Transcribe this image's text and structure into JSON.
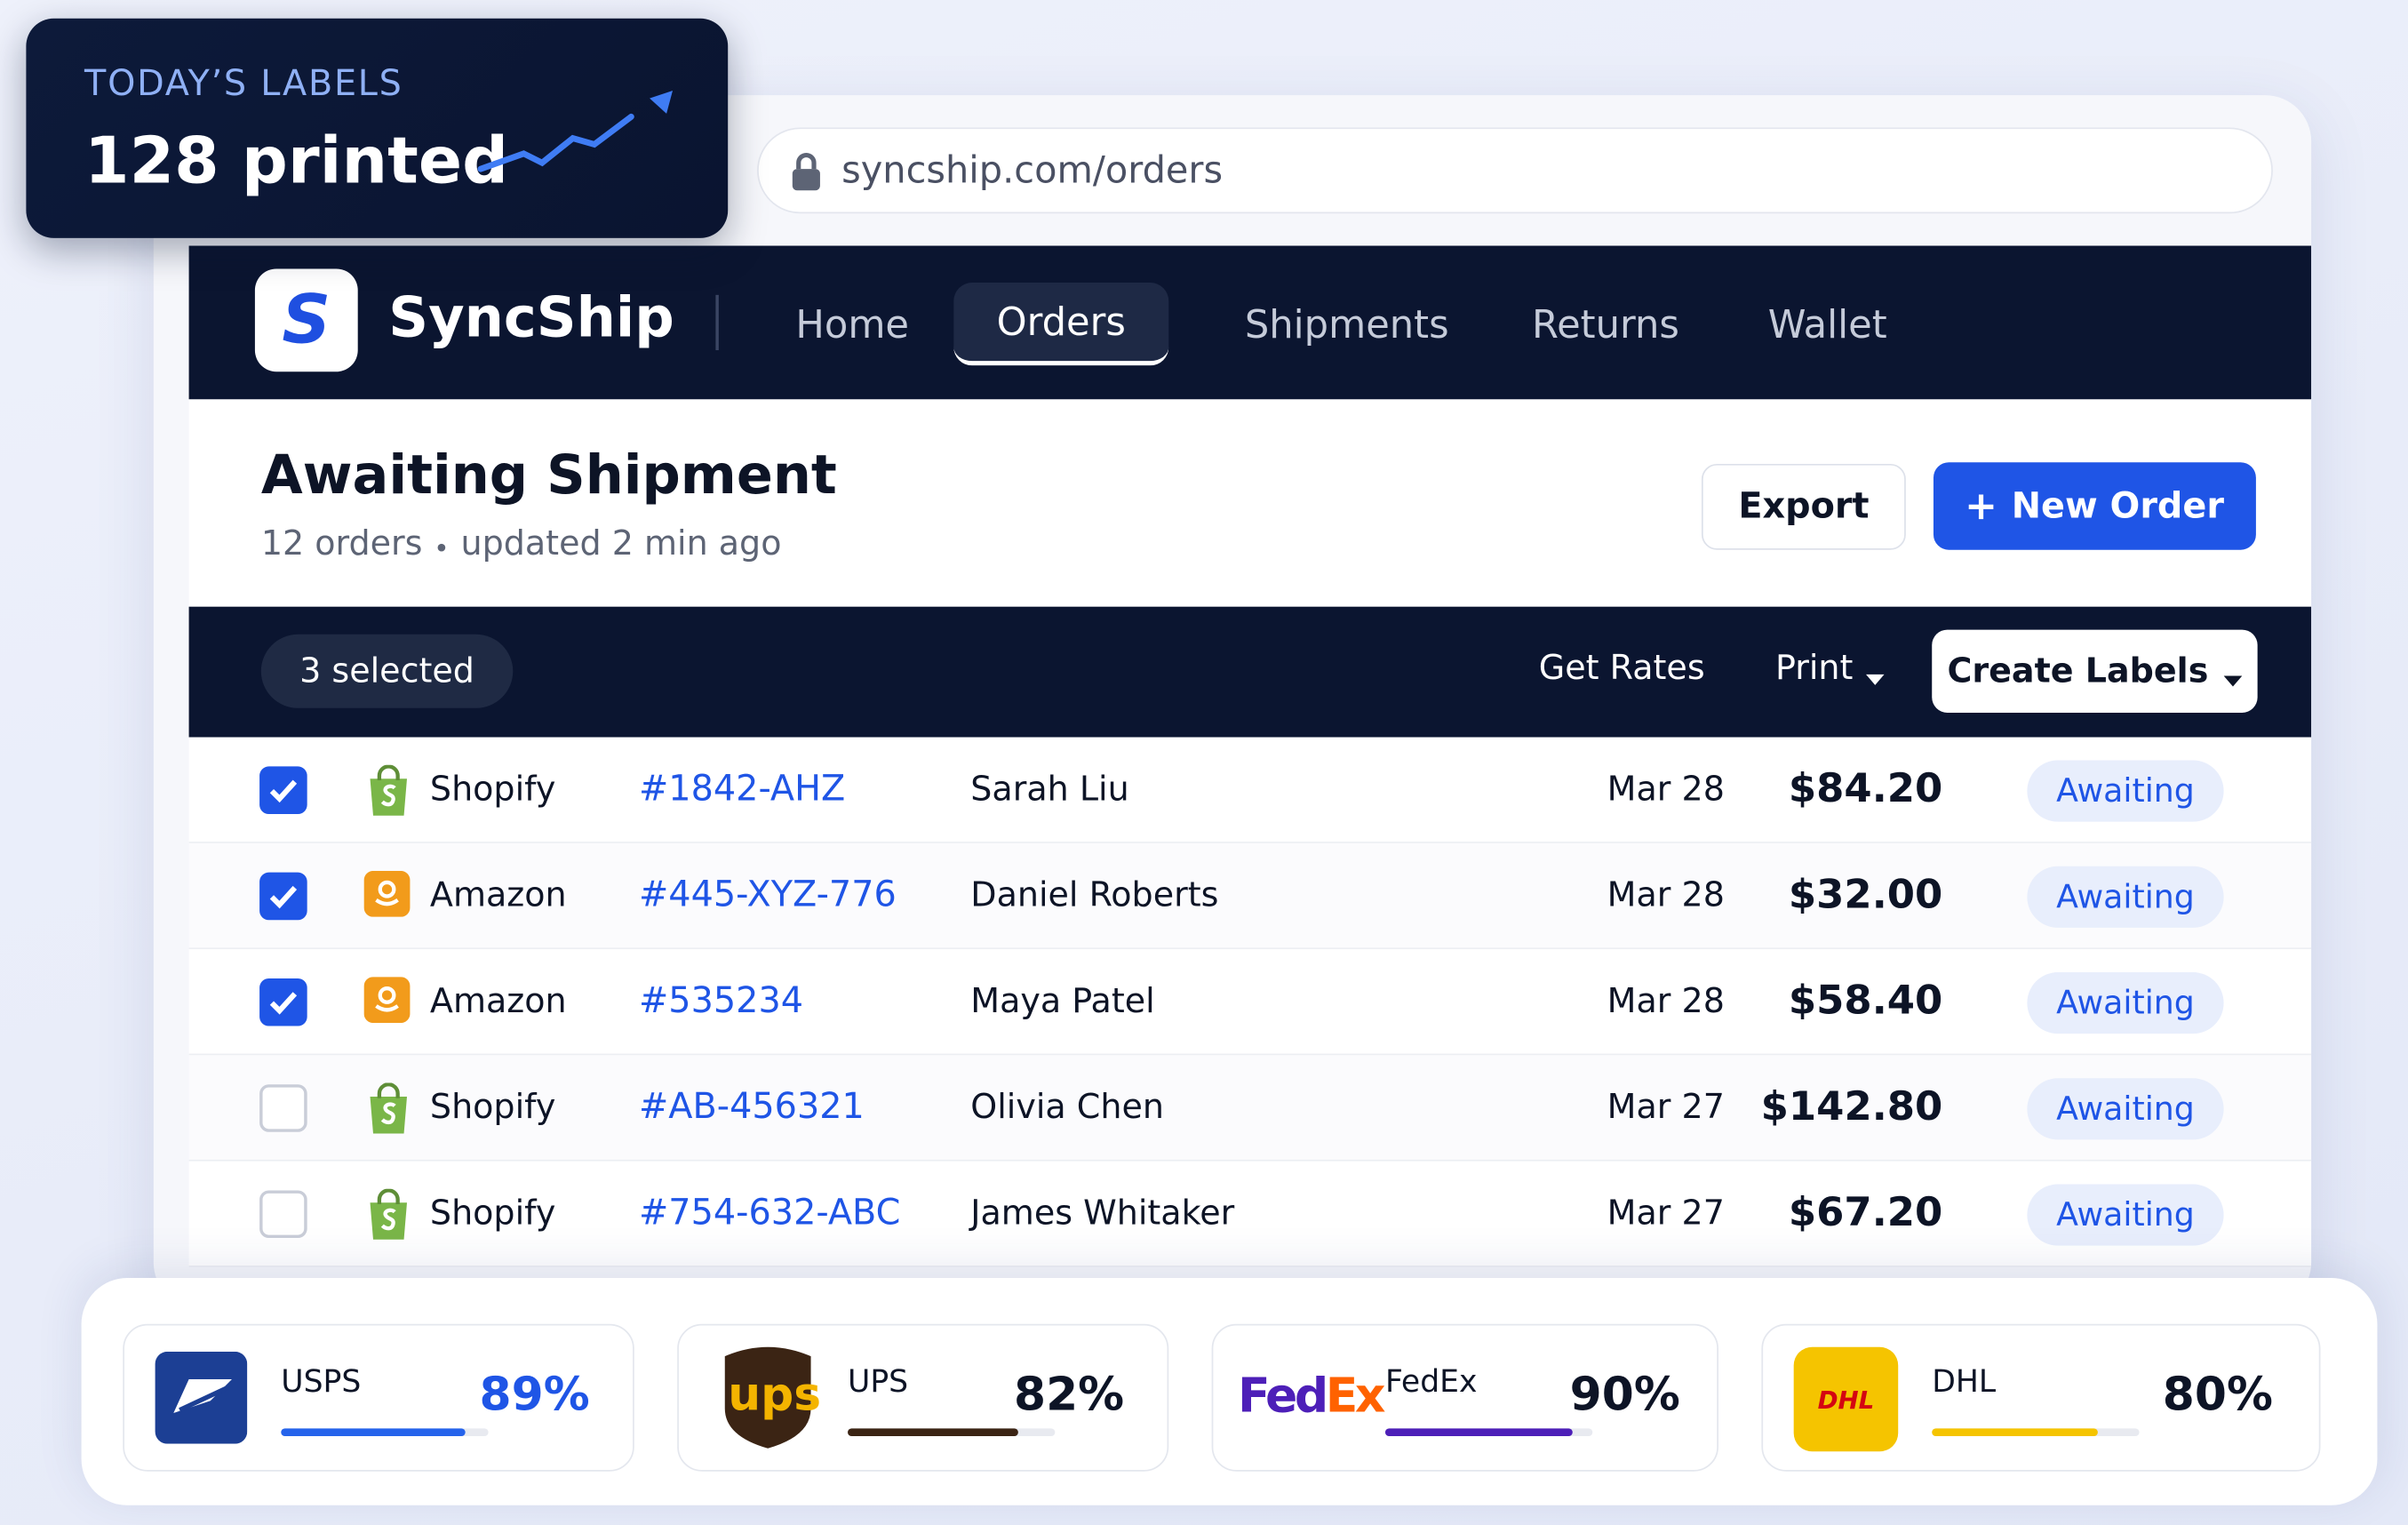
{
  "widget": {
    "label": "TODAY’S LABELS",
    "value": "128 printed"
  },
  "browser": {
    "url": "syncship.com/orders"
  },
  "nav": {
    "logo": "S",
    "brand": "SyncShip",
    "items": [
      "Home",
      "Orders",
      "Shipments",
      "Returns",
      "Wallet"
    ],
    "active": 1
  },
  "header": {
    "title": "Awaiting Shipment",
    "count": "12 orders",
    "updated": "updated 2 min ago",
    "export": "Export",
    "new_order": "New Order"
  },
  "toolbar": {
    "selected": "3 selected",
    "get_rates": "Get Rates",
    "print": "Print",
    "create_labels": "Create Labels"
  },
  "orders": [
    {
      "checked": true,
      "channel": "Shopify",
      "id": "#1842-AHZ",
      "customer": "Sarah Liu",
      "date": "Mar 28",
      "total": "$84.20",
      "status": "Awaiting"
    },
    {
      "checked": true,
      "channel": "Amazon",
      "id": "#445-XYZ-776",
      "customer": "Daniel Roberts",
      "date": "Mar 28",
      "total": "$32.00",
      "status": "Awaiting"
    },
    {
      "checked": true,
      "channel": "Amazon",
      "id": "#535234",
      "customer": "Maya Patel",
      "date": "Mar 28",
      "total": "$58.40",
      "status": "Awaiting"
    },
    {
      "checked": false,
      "channel": "Shopify",
      "id": "#AB-456321",
      "customer": "Olivia Chen",
      "date": "Mar 27",
      "total": "$142.80",
      "status": "Awaiting"
    },
    {
      "checked": false,
      "channel": "Shopify",
      "id": "#754-632-ABC",
      "customer": "James Whitaker",
      "date": "Mar 27",
      "total": "$67.20",
      "status": "Awaiting"
    }
  ],
  "carriers": [
    {
      "name": "USPS",
      "percent": 89,
      "label": "89%",
      "color": "#2563eb"
    },
    {
      "name": "UPS",
      "logo": "ups",
      "percent": 82,
      "label": "82%",
      "color": "#3b2414"
    },
    {
      "name": "FedEx",
      "logo": [
        "Fed",
        "Ex"
      ],
      "percent": 90,
      "label": "90%",
      "color": "#4d1fb8"
    },
    {
      "name": "DHL",
      "logo": "DHL",
      "percent": 80,
      "label": "80%",
      "color": "#f5c400"
    }
  ]
}
